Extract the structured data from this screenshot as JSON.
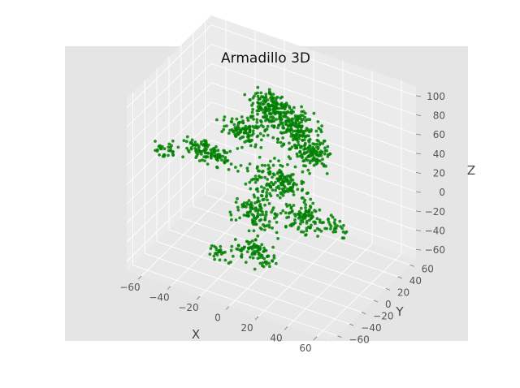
{
  "chart_data": {
    "type": "scatter",
    "projection": "3d",
    "title": "Armadillo 3D",
    "xlabel": "X",
    "ylabel": "Y",
    "zlabel": "Z",
    "xlim": [
      -70,
      70
    ],
    "ylim": [
      -70,
      70
    ],
    "zlim": [
      -70,
      110
    ],
    "xticks": [
      "−60",
      "−40",
      "−20",
      "0",
      "20",
      "40",
      "60"
    ],
    "yticks": [
      "−60",
      "−40",
      "−20",
      "0",
      "20",
      "40",
      "60"
    ],
    "zticks": [
      "−60",
      "−40",
      "−20",
      "0",
      "20",
      "40",
      "60",
      "80",
      "100"
    ],
    "grid": true,
    "point_color": "#008000",
    "background_color": "#e5e5e5",
    "pane_color": "#ebebeb",
    "grid_color": "#ffffff",
    "approximate_point_count": 1200,
    "point_clusters": [
      {
        "x": -5,
        "y": 10,
        "z": 85,
        "sx": 9,
        "sy": 8,
        "sz": 8,
        "n": 160
      },
      {
        "x": 5,
        "y": 25,
        "z": 60,
        "sx": 12,
        "sy": 10,
        "sz": 12,
        "n": 170
      },
      {
        "x": 20,
        "y": 15,
        "z": 50,
        "sx": 8,
        "sy": 8,
        "sz": 12,
        "n": 130
      },
      {
        "x": -15,
        "y": -5,
        "z": 65,
        "sx": 10,
        "sy": 8,
        "sz": 10,
        "n": 110
      },
      {
        "x": -30,
        "y": -30,
        "z": 50,
        "sx": 14,
        "sy": 6,
        "sz": 6,
        "n": 120
      },
      {
        "x": -55,
        "y": -40,
        "z": 45,
        "sx": 6,
        "sy": 5,
        "sz": 6,
        "n": 30
      },
      {
        "x": 0,
        "y": 10,
        "z": 10,
        "sx": 13,
        "sy": 12,
        "sz": 12,
        "n": 170
      },
      {
        "x": -10,
        "y": 0,
        "z": -20,
        "sx": 10,
        "sy": 8,
        "sz": 12,
        "n": 110
      },
      {
        "x": 25,
        "y": 0,
        "z": -10,
        "sx": 10,
        "sy": 8,
        "sz": 10,
        "n": 100
      },
      {
        "x": 40,
        "y": 10,
        "z": -15,
        "sx": 6,
        "sy": 6,
        "sz": 6,
        "n": 25
      },
      {
        "x": -5,
        "y": -15,
        "z": -50,
        "sx": 9,
        "sy": 6,
        "sz": 8,
        "n": 90
      },
      {
        "x": -25,
        "y": -30,
        "z": -50,
        "sx": 6,
        "sy": 5,
        "sz": 5,
        "n": 25
      }
    ]
  }
}
